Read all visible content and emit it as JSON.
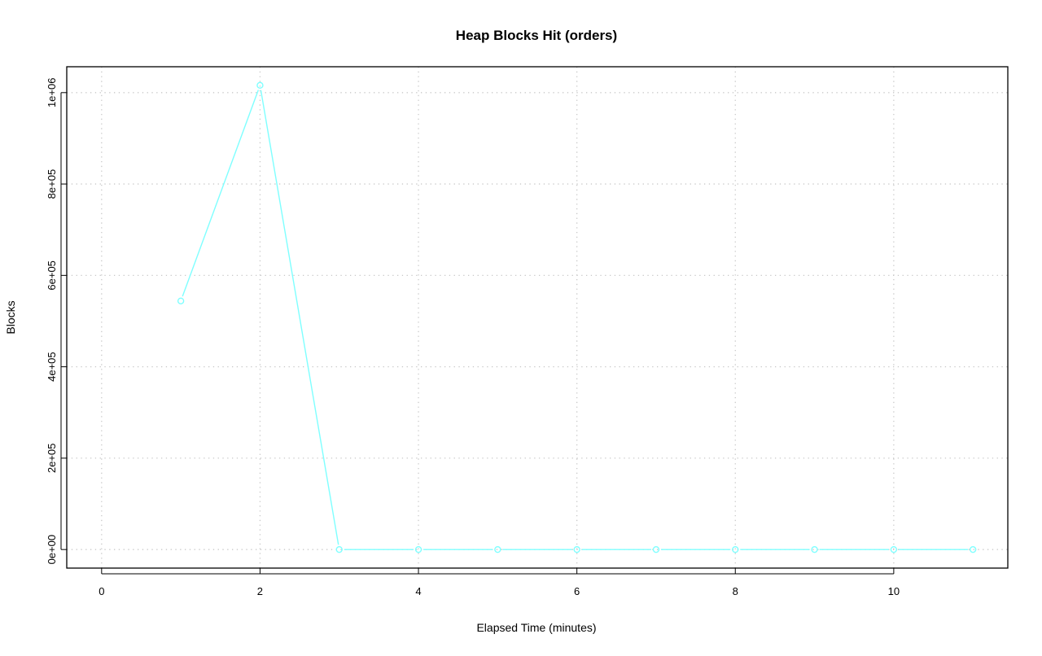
{
  "chart_data": {
    "type": "line",
    "title": "Heap Blocks Hit (orders)",
    "xlabel": "Elapsed Time (minutes)",
    "ylabel": "Blocks",
    "x": [
      1,
      2,
      3,
      4,
      5,
      6,
      7,
      8,
      9,
      10,
      11
    ],
    "series": [
      {
        "values": [
          544000,
          1016000,
          0,
          0,
          0,
          0,
          0,
          0,
          0,
          0,
          0
        ],
        "color": "#7FFFFF"
      }
    ],
    "xlim": [
      0,
      11
    ],
    "ylim": [
      0,
      1016000
    ],
    "xticks": [
      0,
      2,
      4,
      6,
      8,
      10
    ],
    "xtick_labels": [
      "0",
      "2",
      "4",
      "6",
      "8",
      "10"
    ],
    "yticks": [
      0,
      200000,
      400000,
      600000,
      800000,
      1000000
    ],
    "ytick_labels": [
      "0e+00",
      "2e+05",
      "4e+05",
      "6e+05",
      "8e+05",
      "1e+06"
    ],
    "grid": true,
    "markers": "open-circle"
  }
}
